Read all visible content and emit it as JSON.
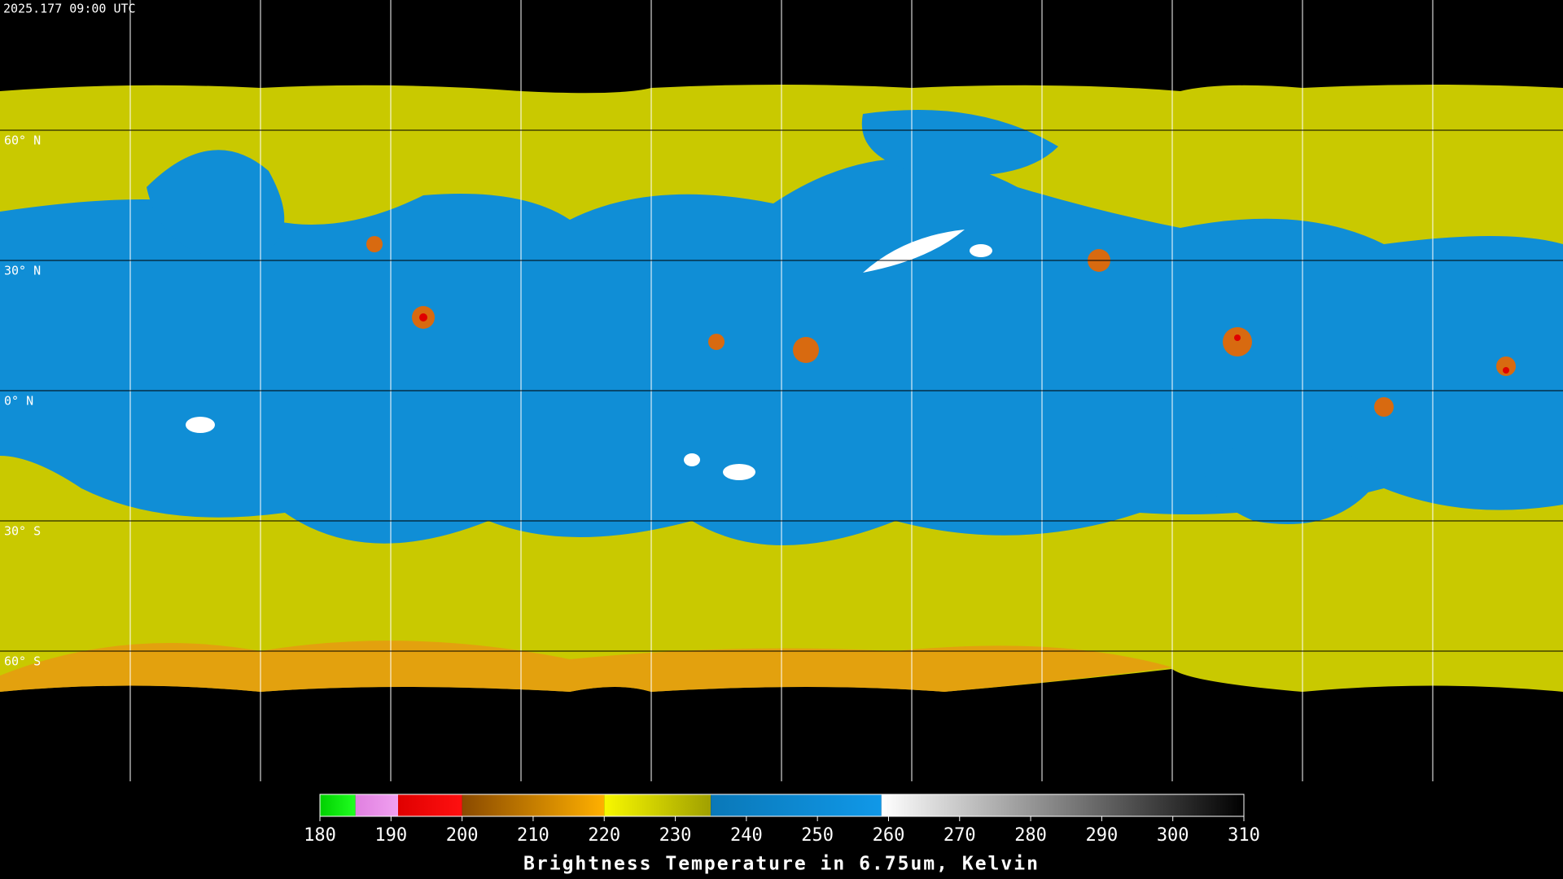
{
  "header": {
    "timestamp": "2025.177 09:00 UTC"
  },
  "map": {
    "lat_labels": [
      "60° N",
      "30° N",
      "0° N",
      "30° S",
      "60° S"
    ]
  },
  "colorbar": {
    "range": [
      180,
      310
    ],
    "ticks": [
      180,
      190,
      200,
      210,
      220,
      230,
      240,
      250,
      260,
      270,
      280,
      290,
      300,
      310
    ],
    "segments": [
      {
        "from": 180,
        "to": 185,
        "colors": [
          "#00d000",
          "#20ff20"
        ]
      },
      {
        "from": 185,
        "to": 191,
        "colors": [
          "#e080e0",
          "#f0a0f0"
        ]
      },
      {
        "from": 191,
        "to": 200,
        "colors": [
          "#e00000",
          "#ff1010"
        ]
      },
      {
        "from": 200,
        "to": 220,
        "colors": [
          "#8a4a00",
          "#ffb000"
        ]
      },
      {
        "from": 220,
        "to": 235,
        "colors": [
          "#f8f800",
          "#a0a000"
        ]
      },
      {
        "from": 235,
        "to": 259,
        "colors": [
          "#0a78b8",
          "#1098e8"
        ]
      },
      {
        "from": 259,
        "to": 310,
        "colors": [
          "#ffffff",
          "#000000"
        ]
      }
    ],
    "title": "Brightness Temperature in 6.75um, Kelvin"
  }
}
